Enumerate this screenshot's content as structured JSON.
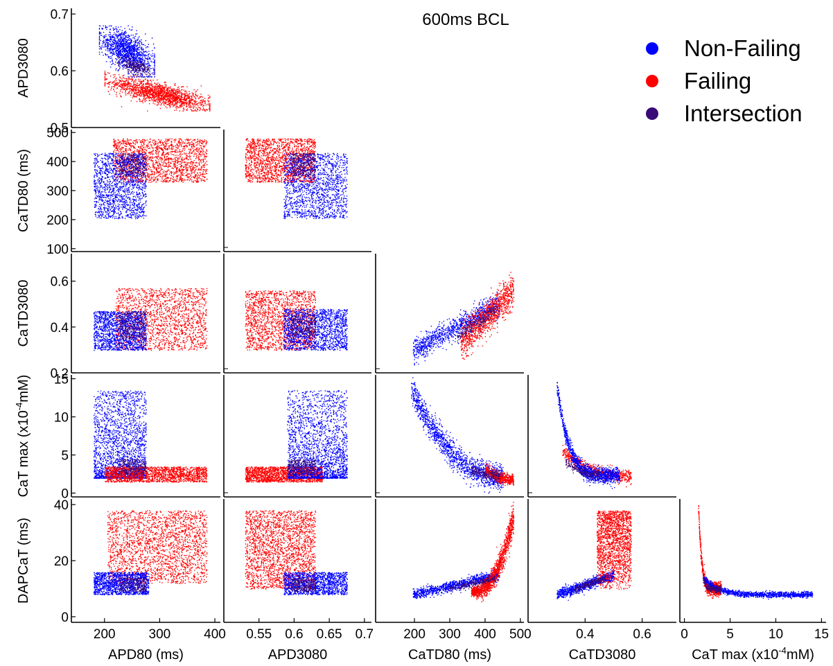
{
  "chart_data": {
    "type": "scatter",
    "layout": "scatter-matrix (lower triangle)",
    "title": "600ms BCL",
    "legend": {
      "placement": "top-right",
      "entries": [
        {
          "label": "Non-Failing",
          "color": "#0000ff"
        },
        {
          "label": "Failing",
          "color": "#ff0000"
        },
        {
          "label": "Intersection",
          "color": "#3a0a78"
        }
      ]
    },
    "variables": [
      {
        "key": "APD80",
        "xlabel": "APD80 (ms)",
        "ylabel": "",
        "range": [
          140,
          410
        ],
        "ticks": [
          "200",
          "300",
          "400"
        ],
        "tick_values": [
          200,
          300,
          400
        ]
      },
      {
        "key": "APD3080",
        "xlabel": "APD3080",
        "ylabel": "APD3080",
        "range": [
          0.5,
          0.71
        ],
        "ticks": [
          "0.55",
          "0.6",
          "0.65",
          "0.7"
        ],
        "tick_values": [
          0.55,
          0.6,
          0.65,
          0.7
        ],
        "yticks": [
          "0.5",
          "0.6",
          "0.7"
        ],
        "ytick_values": [
          0.5,
          0.6,
          0.7
        ]
      },
      {
        "key": "CaTD80",
        "xlabel": "CaTD80 (ms)",
        "ylabel": "CaTD80 (ms)",
        "range": [
          90,
          510
        ],
        "ticks": [
          "200",
          "300",
          "400",
          "500"
        ],
        "tick_values": [
          200,
          300,
          400,
          500
        ],
        "yticks": [
          "100",
          "200",
          "300",
          "400",
          "500"
        ],
        "ytick_values": [
          100,
          200,
          300,
          400,
          500
        ]
      },
      {
        "key": "CaTD3080",
        "xlabel": "CaTD3080",
        "ylabel": "CaTD3080",
        "range": [
          0.2,
          0.72
        ],
        "ticks": [
          "0.4",
          "0.6"
        ],
        "tick_values": [
          0.4,
          0.6
        ],
        "yticks": [
          "0.2",
          "0.4",
          "0.6"
        ],
        "ytick_values": [
          0.2,
          0.4,
          0.6
        ]
      },
      {
        "key": "CaTmax",
        "xlabel_main": "CaT max (x10",
        "xlabel_sup": "-4",
        "xlabel_tail": "mM)",
        "ylabel_main": "CaT max (x10",
        "ylabel_sup": "-4",
        "ylabel_tail": "mM)",
        "range": [
          -0.5,
          15.5
        ],
        "ticks": [
          "0",
          "5",
          "10",
          "15"
        ],
        "tick_values": [
          0,
          5,
          10,
          15
        ],
        "yticks": [
          "0",
          "5",
          "10",
          "15"
        ],
        "ytick_values": [
          0,
          5,
          10,
          15
        ]
      },
      {
        "key": "DAPCaT",
        "xlabel": "",
        "ylabel": "DAPCaT (ms)",
        "range": [
          -2,
          42
        ],
        "yticks": [
          "0",
          "20",
          "40"
        ],
        "ytick_values": [
          0,
          20,
          40
        ]
      }
    ],
    "panels": [
      {
        "row": "APD3080",
        "col": "APD80",
        "clouds": [
          {
            "series": "Failing",
            "n": 1700,
            "type": "ellipse",
            "cx": 300,
            "cy": 0.56,
            "sx": 45,
            "sy": 0.014,
            "rho": -0.75,
            "xr": [
              200,
              390
            ],
            "yr": [
              0.53,
              0.6
            ]
          },
          {
            "series": "Non-Failing",
            "n": 1400,
            "type": "ellipse",
            "cx": 240,
            "cy": 0.635,
            "sx": 25,
            "sy": 0.02,
            "rho": -0.6,
            "xr": [
              190,
              290
            ],
            "yr": [
              0.59,
              0.68
            ]
          },
          {
            "series": "Intersection",
            "n": 250,
            "type": "ellipse",
            "cx": 255,
            "cy": 0.608,
            "sx": 14,
            "sy": 0.007,
            "rho": -0.5,
            "xr": [
              225,
              290
            ],
            "yr": [
              0.59,
              0.63
            ]
          }
        ]
      },
      {
        "row": "CaTD80",
        "col": "APD80",
        "clouds": [
          {
            "series": "Failing",
            "n": 1800,
            "type": "box",
            "xr": [
              215,
              385
            ],
            "yr": [
              330,
              480
            ],
            "note": "upper band"
          },
          {
            "series": "Non-Failing",
            "n": 1500,
            "type": "box",
            "xr": [
              180,
              275
            ],
            "yr": [
              205,
              430
            ]
          },
          {
            "series": "Intersection",
            "n": 250,
            "type": "box",
            "xr": [
              225,
              275
            ],
            "yr": [
              350,
              430
            ]
          }
        ]
      },
      {
        "row": "CaTD80",
        "col": "APD3080",
        "clouds": [
          {
            "series": "Failing",
            "n": 1700,
            "type": "box",
            "xr": [
              0.53,
              0.63
            ],
            "yr": [
              330,
              480
            ]
          },
          {
            "series": "Non-Failing",
            "n": 1500,
            "type": "box",
            "xr": [
              0.585,
              0.675
            ],
            "yr": [
              205,
              430
            ]
          },
          {
            "series": "Intersection",
            "n": 250,
            "type": "box",
            "xr": [
              0.595,
              0.63
            ],
            "yr": [
              350,
              430
            ]
          }
        ]
      },
      {
        "row": "CaTD3080",
        "col": "APD80",
        "clouds": [
          {
            "series": "Failing",
            "n": 1700,
            "type": "box",
            "xr": [
              220,
              385
            ],
            "yr": [
              0.3,
              0.57
            ]
          },
          {
            "series": "Non-Failing",
            "n": 1500,
            "type": "box",
            "xr": [
              180,
              275
            ],
            "yr": [
              0.3,
              0.47
            ]
          },
          {
            "series": "Intersection",
            "n": 250,
            "type": "box",
            "xr": [
              225,
              275
            ],
            "yr": [
              0.35,
              0.47
            ]
          }
        ]
      },
      {
        "row": "CaTD3080",
        "col": "APD3080",
        "clouds": [
          {
            "series": "Failing",
            "n": 1700,
            "type": "box",
            "xr": [
              0.53,
              0.63
            ],
            "yr": [
              0.3,
              0.56
            ]
          },
          {
            "series": "Non-Failing",
            "n": 1500,
            "type": "box",
            "xr": [
              0.585,
              0.675
            ],
            "yr": [
              0.3,
              0.48
            ]
          },
          {
            "series": "Intersection",
            "n": 250,
            "type": "box",
            "xr": [
              0.595,
              0.63
            ],
            "yr": [
              0.36,
              0.46
            ]
          }
        ]
      },
      {
        "row": "CaTD3080",
        "col": "CaTD80",
        "clouds": [
          {
            "series": "Non-Failing",
            "n": 1100,
            "type": "curve",
            "fn": "line",
            "x0": 195,
            "y0": 0.3,
            "x1": 440,
            "y1": 0.5,
            "spread": 0.025
          },
          {
            "series": "Failing",
            "n": 1100,
            "type": "curve",
            "fn": "line",
            "x0": 330,
            "y0": 0.33,
            "x1": 480,
            "y1": 0.56,
            "spread": 0.035
          },
          {
            "series": "Intersection",
            "n": 200,
            "type": "curve",
            "fn": "line",
            "x0": 320,
            "y0": 0.36,
            "x1": 430,
            "y1": 0.48,
            "spread": 0.015
          }
        ]
      },
      {
        "row": "CaTmax",
        "col": "APD80",
        "clouds": [
          {
            "series": "Non-Failing",
            "n": 2200,
            "type": "box",
            "xr": [
              180,
              275
            ],
            "yr": [
              2,
              13.5
            ],
            "skew": 2
          },
          {
            "series": "Failing",
            "n": 1700,
            "type": "box",
            "xr": [
              200,
              385
            ],
            "yr": [
              1.5,
              3.5
            ]
          },
          {
            "series": "Intersection",
            "n": 250,
            "type": "box",
            "xr": [
              225,
              275
            ],
            "yr": [
              2.5,
              4.5
            ]
          }
        ]
      },
      {
        "row": "CaTmax",
        "col": "APD3080",
        "clouds": [
          {
            "series": "Failing",
            "n": 1700,
            "type": "box",
            "xr": [
              0.53,
              0.64
            ],
            "yr": [
              1.5,
              3.5
            ]
          },
          {
            "series": "Non-Failing",
            "n": 2200,
            "type": "box",
            "xr": [
              0.59,
              0.675
            ],
            "yr": [
              2,
              13.5
            ],
            "skew": 2
          },
          {
            "series": "Intersection",
            "n": 250,
            "type": "box",
            "xr": [
              0.59,
              0.63
            ],
            "yr": [
              2.5,
              4.5
            ]
          }
        ]
      },
      {
        "row": "CaTmax",
        "col": "CaTD80",
        "clouds": [
          {
            "series": "Non-Failing",
            "n": 1500,
            "type": "curve",
            "fn": "decay",
            "x0": 190,
            "x1": 450,
            "ya": 13.5,
            "yb": 2.2,
            "spread": 0.9
          },
          {
            "series": "Failing",
            "n": 600,
            "type": "curve",
            "fn": "decay",
            "x0": 400,
            "x1": 480,
            "ya": 3.2,
            "yb": 1.8,
            "spread": 0.35
          },
          {
            "series": "Intersection",
            "n": 200,
            "type": "curve",
            "fn": "decay",
            "x0": 360,
            "x1": 440,
            "ya": 3.2,
            "yb": 2.3,
            "spread": 0.3
          }
        ]
      },
      {
        "row": "CaTmax",
        "col": "CaTD3080",
        "clouds": [
          {
            "series": "Failing",
            "n": 700,
            "type": "curve",
            "fn": "decay",
            "x0": 0.32,
            "x1": 0.56,
            "ya": 5.5,
            "yb": 2.2,
            "spread": 0.4
          },
          {
            "series": "Non-Failing",
            "n": 1300,
            "type": "curve",
            "fn": "hyper",
            "x0": 0.3,
            "x1": 0.52,
            "ya": 14,
            "yb": 2.3,
            "spread": 0.5
          },
          {
            "series": "Intersection",
            "n": 200,
            "type": "curve",
            "fn": "decay",
            "x0": 0.33,
            "x1": 0.45,
            "ya": 4.2,
            "yb": 2.5,
            "spread": 0.3
          }
        ]
      },
      {
        "row": "DAPCaT",
        "col": "APD80",
        "clouds": [
          {
            "series": "Failing",
            "n": 2200,
            "type": "box",
            "xr": [
              205,
              385
            ],
            "yr": [
              12,
              38
            ]
          },
          {
            "series": "Non-Failing",
            "n": 1300,
            "type": "box",
            "xr": [
              180,
              280
            ],
            "yr": [
              8,
              16
            ]
          },
          {
            "series": "Intersection",
            "n": 220,
            "type": "box",
            "xr": [
              225,
              275
            ],
            "yr": [
              9,
              14
            ]
          }
        ]
      },
      {
        "row": "DAPCaT",
        "col": "APD3080",
        "clouds": [
          {
            "series": "Failing",
            "n": 2200,
            "type": "box",
            "xr": [
              0.53,
              0.63
            ],
            "yr": [
              10,
              38
            ]
          },
          {
            "series": "Non-Failing",
            "n": 1300,
            "type": "box",
            "xr": [
              0.585,
              0.675
            ],
            "yr": [
              8,
              16
            ]
          },
          {
            "series": "Intersection",
            "n": 220,
            "type": "box",
            "xr": [
              0.595,
              0.63
            ],
            "yr": [
              9,
              14
            ]
          }
        ]
      },
      {
        "row": "DAPCaT",
        "col": "CaTD80",
        "clouds": [
          {
            "series": "Non-Failing",
            "n": 1100,
            "type": "curve",
            "fn": "line",
            "x0": 195,
            "y0": 8,
            "x1": 440,
            "y1": 15,
            "spread": 0.9
          },
          {
            "series": "Failing",
            "n": 1500,
            "type": "curve",
            "fn": "rise",
            "x0": 360,
            "x1": 480,
            "ya": 9,
            "yb": 36,
            "spread": 2.2
          },
          {
            "series": "Intersection",
            "n": 200,
            "type": "curve",
            "fn": "line",
            "x0": 300,
            "y0": 10,
            "x1": 430,
            "y1": 14,
            "spread": 0.6
          }
        ]
      },
      {
        "row": "DAPCaT",
        "col": "CaTD3080",
        "clouds": [
          {
            "series": "Non-Failing",
            "n": 1000,
            "type": "curve",
            "fn": "line",
            "x0": 0.3,
            "y0": 8,
            "x1": 0.5,
            "y1": 15,
            "spread": 0.9
          },
          {
            "series": "Failing",
            "n": 1800,
            "type": "box",
            "xr": [
              0.44,
              0.56
            ],
            "yr": [
              10,
              38
            ],
            "skew": 0.7
          },
          {
            "series": "Intersection",
            "n": 200,
            "type": "curve",
            "fn": "line",
            "x0": 0.36,
            "y0": 10,
            "x1": 0.47,
            "y1": 14,
            "spread": 0.6
          }
        ]
      },
      {
        "row": "DAPCaT",
        "col": "CaTmax",
        "clouds": [
          {
            "series": "Failing",
            "n": 900,
            "type": "curve",
            "fn": "hyperX",
            "x0": 1.5,
            "x1": 4,
            "ya": 39,
            "yb": 10,
            "spread": 1.2
          },
          {
            "series": "Non-Failing",
            "n": 1200,
            "type": "curve",
            "fn": "hyperX",
            "x0": 2,
            "x1": 14,
            "ya": 14,
            "yb": 8,
            "spread": 0.5
          },
          {
            "series": "Intersection",
            "n": 200,
            "type": "curve",
            "fn": "hyperX",
            "x0": 2,
            "x1": 4,
            "ya": 14,
            "yb": 10,
            "spread": 0.5
          }
        ]
      }
    ]
  }
}
